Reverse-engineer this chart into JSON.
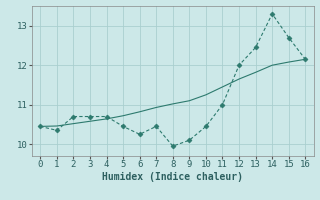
{
  "x": [
    0,
    1,
    2,
    3,
    4,
    5,
    6,
    7,
    8,
    9,
    10,
    11,
    12,
    13,
    14,
    15,
    16
  ],
  "y_jagged": [
    10.45,
    10.35,
    10.7,
    10.7,
    10.7,
    10.45,
    10.25,
    10.45,
    9.95,
    10.1,
    10.45,
    11.0,
    12.0,
    12.45,
    13.3,
    12.7,
    12.15
  ],
  "y_smooth": [
    10.45,
    10.46,
    10.52,
    10.58,
    10.64,
    10.72,
    10.82,
    10.93,
    11.02,
    11.1,
    11.25,
    11.45,
    11.65,
    11.82,
    12.0,
    12.08,
    12.15
  ],
  "line_color": "#2d7a6e",
  "bg_color": "#cce8e8",
  "grid_color": "#aacfcf",
  "xlabel": "Humidex (Indice chaleur)",
  "xlim": [
    -0.5,
    16.5
  ],
  "ylim": [
    9.7,
    13.5
  ],
  "yticks": [
    10,
    11,
    12,
    13
  ],
  "xticks": [
    0,
    1,
    2,
    3,
    4,
    5,
    6,
    7,
    8,
    9,
    10,
    11,
    12,
    13,
    14,
    15,
    16
  ],
  "xlabel_fontsize": 7,
  "tick_fontsize": 6.5
}
